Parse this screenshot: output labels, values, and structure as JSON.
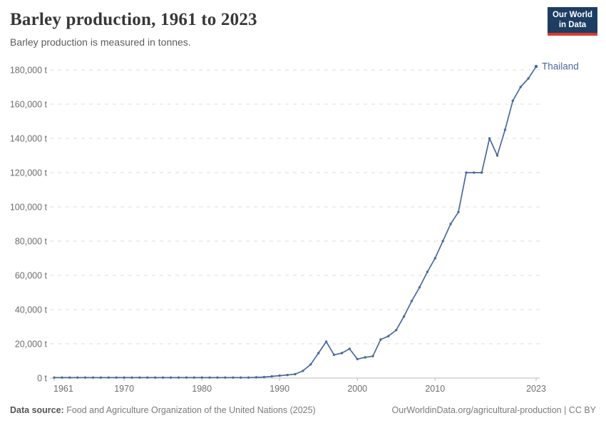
{
  "header": {
    "title": "Barley production, 1961 to 2023",
    "subtitle": "Barley production is measured in tonnes.",
    "logo": {
      "line1": "Our World",
      "line2": "in Data",
      "bg_color": "#1d3d63",
      "accent_color": "#d93a2b"
    }
  },
  "chart_data": {
    "type": "line",
    "title": "Barley production, 1961 to 2023",
    "unit": "tonnes",
    "unit_suffix": " t",
    "xlabel": "",
    "ylabel": "",
    "xlim": [
      1961,
      2023
    ],
    "ylim": [
      0,
      180000
    ],
    "x_ticks": [
      1961,
      1970,
      1980,
      1990,
      2000,
      2010,
      2023
    ],
    "y_ticks": [
      0,
      20000,
      40000,
      60000,
      80000,
      100000,
      120000,
      140000,
      160000,
      180000
    ],
    "grid": "horizontal-dashed",
    "legend_position": "end-of-line-label",
    "series": [
      {
        "name": "Thailand",
        "color": "#4C6A9C",
        "points": [
          [
            1961,
            300
          ],
          [
            1962,
            300
          ],
          [
            1963,
            300
          ],
          [
            1964,
            300
          ],
          [
            1965,
            300
          ],
          [
            1966,
            300
          ],
          [
            1967,
            300
          ],
          [
            1968,
            300
          ],
          [
            1969,
            300
          ],
          [
            1970,
            300
          ],
          [
            1971,
            300
          ],
          [
            1972,
            300
          ],
          [
            1973,
            300
          ],
          [
            1974,
            300
          ],
          [
            1975,
            300
          ],
          [
            1976,
            300
          ],
          [
            1977,
            300
          ],
          [
            1978,
            300
          ],
          [
            1979,
            300
          ],
          [
            1980,
            300
          ],
          [
            1981,
            300
          ],
          [
            1982,
            300
          ],
          [
            1983,
            300
          ],
          [
            1984,
            300
          ],
          [
            1985,
            300
          ],
          [
            1986,
            300
          ],
          [
            1987,
            400
          ],
          [
            1988,
            600
          ],
          [
            1989,
            1000
          ],
          [
            1990,
            1400
          ],
          [
            1991,
            1800
          ],
          [
            1992,
            2300
          ],
          [
            1993,
            4200
          ],
          [
            1994,
            8000
          ],
          [
            1995,
            14600
          ],
          [
            1996,
            21300
          ],
          [
            1997,
            13600
          ],
          [
            1998,
            14600
          ],
          [
            1999,
            17100
          ],
          [
            2000,
            11100
          ],
          [
            2001,
            12100
          ],
          [
            2002,
            12800
          ],
          [
            2003,
            22500
          ],
          [
            2004,
            24500
          ],
          [
            2005,
            28000
          ],
          [
            2006,
            36000
          ],
          [
            2007,
            45000
          ],
          [
            2008,
            53000
          ],
          [
            2009,
            62000
          ],
          [
            2010,
            70000
          ],
          [
            2011,
            80000
          ],
          [
            2012,
            90000
          ],
          [
            2013,
            97000
          ],
          [
            2014,
            120000
          ],
          [
            2015,
            120000
          ],
          [
            2016,
            120000
          ],
          [
            2017,
            140000
          ],
          [
            2018,
            130000
          ],
          [
            2019,
            145000
          ],
          [
            2020,
            162000
          ],
          [
            2021,
            170000
          ],
          [
            2022,
            175000
          ],
          [
            2023,
            182000
          ]
        ]
      }
    ]
  },
  "footer": {
    "source_label": "Data source:",
    "source_text": " Food and Agriculture Organization of the United Nations (2025)",
    "credit": "OurWorldinData.org/agricultural-production | CC BY"
  },
  "colors": {
    "line": "#4C6A9C",
    "gridline": "#dddddd",
    "axis": "#bbbbbb",
    "tick_text": "#6e6e6e",
    "title_text": "#373737",
    "subtitle_text": "#5d5d5d"
  }
}
